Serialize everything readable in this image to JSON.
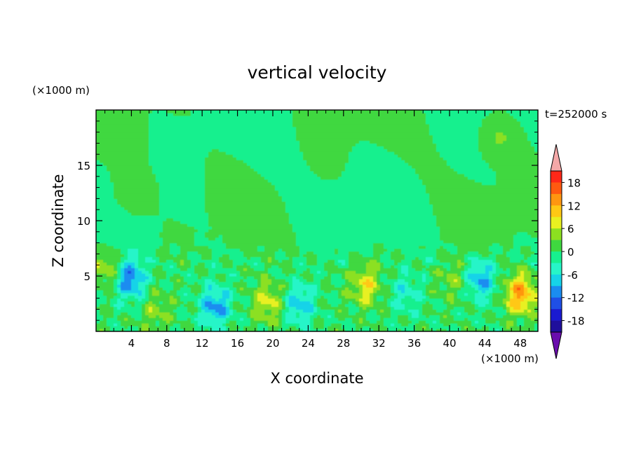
{
  "chart_data": {
    "type": "heatmap",
    "title": "vertical velocity",
    "time_label": "t=252000 s",
    "xlabel": "X coordinate",
    "ylabel": "Z coordinate",
    "x_units": "(×1000 m)",
    "y_units": "(×1000 m)",
    "xlim": [
      0,
      50
    ],
    "ylim": [
      0,
      20
    ],
    "x_ticks": [
      4,
      8,
      12,
      16,
      20,
      24,
      28,
      32,
      36,
      40,
      44,
      48
    ],
    "x_tick_labels": [
      "4",
      "8",
      "12",
      "16",
      "20",
      "24",
      "28",
      "32",
      "36",
      "40",
      "44",
      "48"
    ],
    "y_ticks": [
      5,
      10,
      15
    ],
    "y_tick_labels": [
      "5",
      "10",
      "15"
    ],
    "colorbar": {
      "levels": [
        -21,
        -18,
        -15,
        -12,
        -9,
        -6,
        -3,
        0,
        3,
        6,
        9,
        12,
        15,
        18,
        21
      ],
      "labels": [
        "18",
        "12",
        "6",
        "0",
        "-6",
        "-12",
        "-18"
      ],
      "label_values": [
        18,
        12,
        6,
        0,
        -6,
        -12,
        -18
      ],
      "colors": [
        "#6a0dad",
        "#1f0f9c",
        "#1a1ad1",
        "#1f4fe6",
        "#1a8cf0",
        "#16d3e8",
        "#27f5c8",
        "#17f08e",
        "#3fd83f",
        "#8ce020",
        "#e8f020",
        "#ffc814",
        "#ff9610",
        "#ff5a10",
        "#ff2818",
        "#f4a8a8"
      ],
      "extend": "both"
    },
    "field_features": [
      {
        "x": 1.5,
        "z": 5.8,
        "w": 6
      },
      {
        "x": 3.8,
        "z": 4.8,
        "w": -12
      },
      {
        "x": 6.8,
        "z": 1.8,
        "w": 4
      },
      {
        "x": 13.5,
        "z": 2.3,
        "w": -10
      },
      {
        "x": 19.5,
        "z": 2.7,
        "w": 7
      },
      {
        "x": 23.0,
        "z": 2.5,
        "w": -8
      },
      {
        "x": 30.5,
        "z": 4.2,
        "w": 8
      },
      {
        "x": 35.0,
        "z": 3.5,
        "w": -5
      },
      {
        "x": 40.5,
        "z": 4.8,
        "w": 4
      },
      {
        "x": 43.5,
        "z": 4.7,
        "w": -9
      },
      {
        "x": 48.0,
        "z": 3.4,
        "w": 13
      },
      {
        "x": 45.5,
        "z": 17.5,
        "w": 4
      },
      {
        "x": 4.0,
        "z": 12.5,
        "w": 3
      }
    ]
  }
}
